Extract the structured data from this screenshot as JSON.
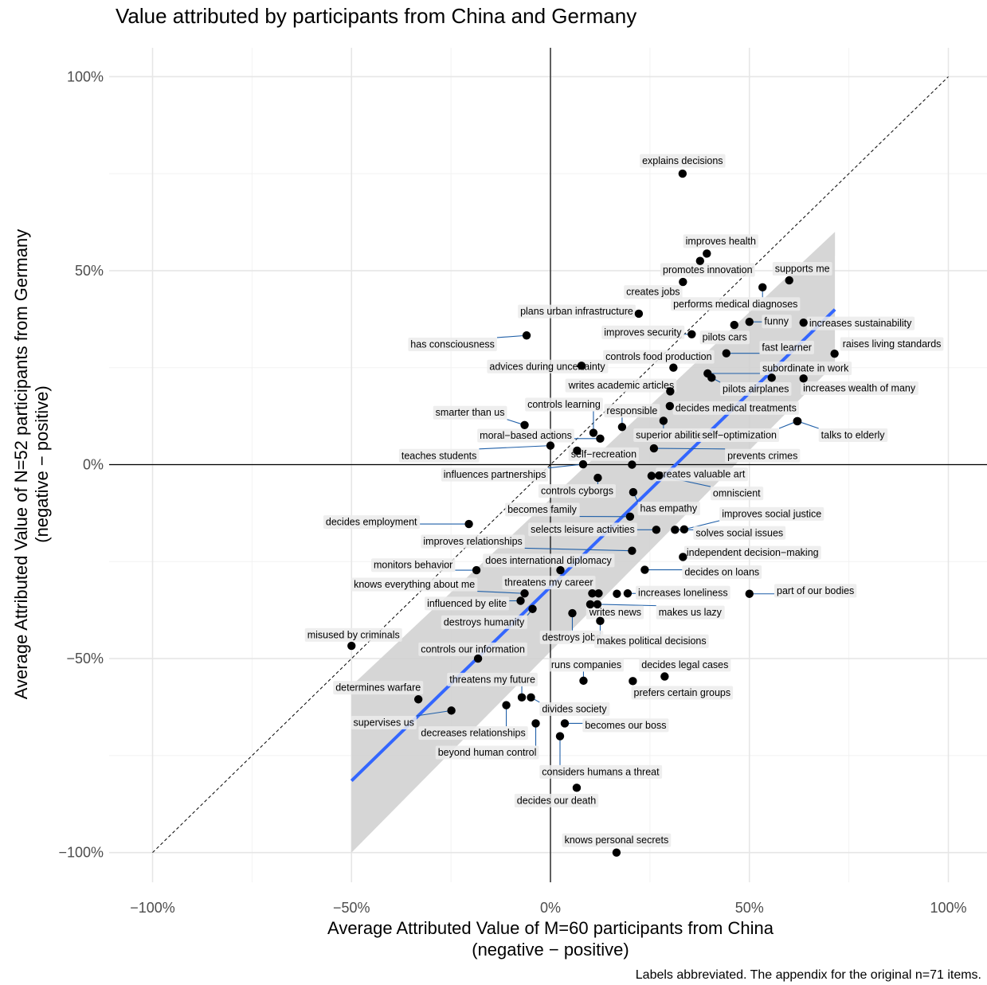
{
  "chart_data": {
    "type": "scatter",
    "title": "Value attributed by participants from China and Germany",
    "xlabel": "Average Attributed Value of M=60 participants from China",
    "xlabel2": "(negative − positive)",
    "ylabel": "Average Attributed Value of N=52 participants from Germany",
    "ylabel2": "(negative − positive)",
    "caption": "Labels abbreviated. The appendix for the original n=71 items.",
    "xlim": [
      -110,
      110
    ],
    "ylim": [
      -110,
      100
    ],
    "x_ticks": [
      {
        "v": -100,
        "label": "−100%"
      },
      {
        "v": -50,
        "label": "−50%"
      },
      {
        "v": 0,
        "label": "0%"
      },
      {
        "v": 50,
        "label": "50%"
      },
      {
        "v": 100,
        "label": "100%"
      }
    ],
    "y_ticks": [
      {
        "v": 100,
        "label": "100%"
      },
      {
        "v": 50,
        "label": "50%"
      },
      {
        "v": 0,
        "label": "0%"
      },
      {
        "v": -50,
        "label": "−50%"
      },
      {
        "v": -100,
        "label": "−100%"
      }
    ],
    "grid": true,
    "reference_line": "diagonal y = x (dashed)",
    "regression": {
      "x_range": [
        -50,
        71.5
      ],
      "slope": 1.0,
      "intercept": -31.5,
      "ci_at_start": [
        -100,
        -57
      ],
      "ci_at_end": [
        26,
        60
      ],
      "color": "#3366ff",
      "band_color": "#cccccc"
    },
    "colors": {
      "points": "#000000",
      "fit_line": "#3366ff",
      "label_background": "#ebebeb",
      "connectors": "#1f5fa8"
    },
    "points": [
      {
        "x": 33.2,
        "y": 75.0,
        "label": "explains decisions",
        "lx": 33.2,
        "ly": 78.4
      },
      {
        "x": 39.3,
        "y": 54.4,
        "label": "improves health",
        "lx": 42.8,
        "ly": 57.7
      },
      {
        "x": 37.6,
        "y": 52.5,
        "label": "promotes innovation",
        "lx": 39.5,
        "ly": 50.3
      },
      {
        "x": 33.3,
        "y": 47.1,
        "label": "creates jobs",
        "lx": 25.8,
        "ly": 44.6
      },
      {
        "x": 60.0,
        "y": 47.5,
        "label": "supports me",
        "lx": 63.3,
        "ly": 50.6
      },
      {
        "x": 53.3,
        "y": 45.7,
        "label": "performs medical diagnoses",
        "lx": 46.5,
        "ly": 41.5
      },
      {
        "x": 22.2,
        "y": 38.9,
        "label": "plans urban infrastructure",
        "lx": 6.6,
        "ly": 39.6
      },
      {
        "x": -6.0,
        "y": 33.3,
        "label": "has consciousness",
        "lx": -24.6,
        "ly": 31.1
      },
      {
        "x": 35.5,
        "y": 33.6,
        "label": "improves security",
        "lx": 23.2,
        "ly": 34.2
      },
      {
        "x": 46.2,
        "y": 36.0,
        "label": "pilots cars",
        "lx": 43.8,
        "ly": 32.9
      },
      {
        "x": 50.0,
        "y": 36.8,
        "label": "funny",
        "lx": 56.8,
        "ly": 37.0
      },
      {
        "x": 63.6,
        "y": 36.6,
        "label": "increases sustainability",
        "lx": 77.9,
        "ly": 36.5
      },
      {
        "x": 44.2,
        "y": 28.7,
        "label": "fast learner",
        "lx": 59.4,
        "ly": 30.3
      },
      {
        "x": 71.4,
        "y": 28.6,
        "label": "raises living standards",
        "lx": 85.8,
        "ly": 31.2
      },
      {
        "x": 30.9,
        "y": 25.0,
        "label": "controls food production",
        "lx": 27.2,
        "ly": 27.9
      },
      {
        "x": 7.8,
        "y": 25.5,
        "label": "advices during uncertainty",
        "lx": -0.8,
        "ly": 25.4
      },
      {
        "x": 39.5,
        "y": 23.5,
        "label": "subordinate in work",
        "lx": 64.1,
        "ly": 24.9
      },
      {
        "x": 40.5,
        "y": 22.4,
        "label": "pilots airplanes",
        "lx": 51.6,
        "ly": 19.6
      },
      {
        "x": 55.6,
        "y": 22.4,
        "label": "",
        "lx": 55.6,
        "ly": 22.4
      },
      {
        "x": 63.6,
        "y": 22.2,
        "label": "increases wealth of many",
        "lx": 77.6,
        "ly": 19.8
      },
      {
        "x": 30.1,
        "y": 18.9,
        "label": "writes academic articles",
        "lx": 17.8,
        "ly": 20.5
      },
      {
        "x": 30.0,
        "y": 15.1,
        "label": "decides medical treatments",
        "lx": 46.6,
        "ly": 14.7
      },
      {
        "x": -6.5,
        "y": 10.2,
        "label": "smarter than us",
        "lx": -20.2,
        "ly": 13.5
      },
      {
        "x": 18.0,
        "y": 9.7,
        "label": "responsible",
        "lx": 20.5,
        "ly": 14.0
      },
      {
        "x": 28.4,
        "y": 11.3,
        "label": "superior abilities",
        "lx": 30.5,
        "ly": 7.7
      },
      {
        "x": 10.8,
        "y": 8.2,
        "label": "controls learning",
        "lx": 3.4,
        "ly": 15.6
      },
      {
        "x": 12.5,
        "y": 6.7,
        "label": "moral−based actions",
        "lx": -6.2,
        "ly": 7.6
      },
      {
        "x": 62.0,
        "y": 11.2,
        "label": "self−optimization",
        "lx": 47.5,
        "ly": 7.7
      },
      {
        "x": 62.1,
        "y": 11.2,
        "label": "talks to elderly",
        "lx": 76.0,
        "ly": 7.7
      },
      {
        "x": 0.0,
        "y": 4.9,
        "label": "teaches students",
        "lx": -28.0,
        "ly": 2.4
      },
      {
        "x": 6.7,
        "y": 3.6,
        "label": "self−recreation",
        "lx": 13.4,
        "ly": 2.8
      },
      {
        "x": 26.0,
        "y": 4.2,
        "label": "prevents crimes",
        "lx": 53.3,
        "ly": 2.4
      },
      {
        "x": 8.2,
        "y": 0.1,
        "label": "influences partnerships",
        "lx": -14.0,
        "ly": -2.5
      },
      {
        "x": 20.5,
        "y": 0.0,
        "label": "",
        "lx": 20.5,
        "ly": 0.0
      },
      {
        "x": 11.9,
        "y": -3.4,
        "label": "controls cyborgs",
        "lx": 6.7,
        "ly": -6.7
      },
      {
        "x": 25.4,
        "y": -2.9,
        "label": "creates valuable art",
        "lx": 38.0,
        "ly": -2.4
      },
      {
        "x": 20.8,
        "y": -7.1,
        "label": "has empathy",
        "lx": 29.7,
        "ly": -11.2
      },
      {
        "x": 27.3,
        "y": -2.8,
        "label": "omniscient",
        "lx": 46.8,
        "ly": -7.3
      },
      {
        "x": 20.0,
        "y": -13.4,
        "label": "becomes family",
        "lx": -2.1,
        "ly": -11.5
      },
      {
        "x": -20.5,
        "y": -15.3,
        "label": "decides employment",
        "lx": -45.0,
        "ly": -14.7
      },
      {
        "x": 33.6,
        "y": -16.7,
        "label": "improves social justice",
        "lx": 55.6,
        "ly": -12.6
      },
      {
        "x": 26.6,
        "y": -16.8,
        "label": "selects leisure activities",
        "lx": 8.1,
        "ly": -16.6
      },
      {
        "x": 31.3,
        "y": -16.8,
        "label": "solves social issues",
        "lx": 47.5,
        "ly": -17.5
      },
      {
        "x": 20.5,
        "y": -22.2,
        "label": "improves relationships",
        "lx": -19.5,
        "ly": -19.7
      },
      {
        "x": 33.3,
        "y": -23.8,
        "label": "independent decision−making",
        "lx": 50.8,
        "ly": -22.6
      },
      {
        "x": 2.5,
        "y": -27.2,
        "label": "does international diplomacy",
        "lx": -0.5,
        "ly": -24.6
      },
      {
        "x": 23.7,
        "y": -27.1,
        "label": "decides on loans",
        "lx": 43.1,
        "ly": -27.6
      },
      {
        "x": -18.6,
        "y": -27.2,
        "label": "monitors behavior",
        "lx": -34.5,
        "ly": -25.8
      },
      {
        "x": 10.5,
        "y": -33.2,
        "label": "",
        "lx": 10.5,
        "ly": -33.2
      },
      {
        "x": 12.1,
        "y": -33.2,
        "label": "threatens my career",
        "lx": -0.4,
        "ly": -30.3
      },
      {
        "x": -6.5,
        "y": -33.2,
        "label": "knows everything about me",
        "lx": -34.2,
        "ly": -30.8
      },
      {
        "x": 16.7,
        "y": -33.3,
        "label": "",
        "lx": 16.7,
        "ly": -33.3
      },
      {
        "x": 19.4,
        "y": -33.2,
        "label": "increases loneliness",
        "lx": 33.3,
        "ly": -32.9
      },
      {
        "x": 50.0,
        "y": -33.3,
        "label": "part of our bodies",
        "lx": 66.6,
        "ly": -32.4
      },
      {
        "x": -7.5,
        "y": -35.1,
        "label": "influenced by elite",
        "lx": -21.0,
        "ly": -35.7
      },
      {
        "x": 10.0,
        "y": -36.0,
        "label": "writes news",
        "lx": 16.3,
        "ly": -38.0
      },
      {
        "x": 11.8,
        "y": -36.0,
        "label": "makes us lazy",
        "lx": 35.1,
        "ly": -38.0
      },
      {
        "x": -4.5,
        "y": -37.2,
        "label": "destroys humanity",
        "lx": -16.7,
        "ly": -40.5
      },
      {
        "x": 5.5,
        "y": -38.3,
        "label": "destroys jobs",
        "lx": 5.3,
        "ly": -44.4
      },
      {
        "x": 12.5,
        "y": -40.3,
        "label": "makes political decisions",
        "lx": 25.4,
        "ly": -45.4
      },
      {
        "x": -50.0,
        "y": -46.7,
        "label": "misused by criminals",
        "lx": -49.5,
        "ly": -43.8
      },
      {
        "x": -18.2,
        "y": -50.0,
        "label": "controls our information",
        "lx": -19.5,
        "ly": -47.5
      },
      {
        "x": 8.3,
        "y": -55.7,
        "label": "runs companies",
        "lx": 9.0,
        "ly": -51.5
      },
      {
        "x": 28.7,
        "y": -54.6,
        "label": "decides legal cases",
        "lx": 33.8,
        "ly": -51.5
      },
      {
        "x": 20.7,
        "y": -55.8,
        "label": "prefers certain groups",
        "lx": 33.1,
        "ly": -58.7
      },
      {
        "x": -33.2,
        "y": -60.5,
        "label": "determines warfare",
        "lx": -43.3,
        "ly": -57.4
      },
      {
        "x": -7.2,
        "y": -60.0,
        "label": "threatens my future",
        "lx": -14.6,
        "ly": -55.3
      },
      {
        "x": -4.9,
        "y": -60.0,
        "label": "divides society",
        "lx": 6.0,
        "ly": -62.9
      },
      {
        "x": -24.9,
        "y": -63.4,
        "label": "supervises us",
        "lx": -41.9,
        "ly": -66.4
      },
      {
        "x": -11.1,
        "y": -62.0,
        "label": "decreases relationships",
        "lx": -19.4,
        "ly": -69.1
      },
      {
        "x": 3.6,
        "y": -66.7,
        "label": "becomes our boss",
        "lx": 18.9,
        "ly": -67.1
      },
      {
        "x": -3.7,
        "y": -66.7,
        "label": "beyond human control",
        "lx": -15.9,
        "ly": -74.1
      },
      {
        "x": 2.4,
        "y": -70.0,
        "label": "considers humans a threat",
        "lx": 12.6,
        "ly": -79.1
      },
      {
        "x": 6.6,
        "y": -83.3,
        "label": "decides our death",
        "lx": 1.5,
        "ly": -86.5
      },
      {
        "x": 16.6,
        "y": -100.0,
        "label": "knows personal secrets",
        "lx": 16.6,
        "ly": -96.7
      }
    ]
  }
}
